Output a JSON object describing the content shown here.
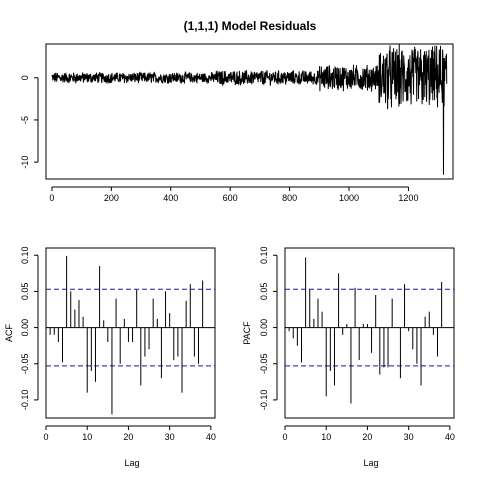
{
  "chart_data": [
    {
      "type": "line",
      "title": "(1,1,1) Model Residuals",
      "xlabel": "",
      "ylabel": "",
      "xlim": [
        -20,
        1350
      ],
      "ylim": [
        -12,
        4
      ],
      "xticks": [
        0,
        200,
        400,
        600,
        800,
        1000,
        1200
      ],
      "yticks": [
        0,
        -5,
        -10
      ],
      "ytick_labels": [
        "0",
        "-5",
        "-10"
      ],
      "n_points": 1330,
      "envelope_segments": [
        {
          "x": [
            0,
            550
          ],
          "amp": 0.6
        },
        {
          "x": [
            550,
            900
          ],
          "amp": 0.8
        },
        {
          "x": [
            900,
            1100
          ],
          "amp": 1.4
        },
        {
          "x": [
            1100,
            1330
          ],
          "amp": 3.5
        }
      ],
      "outlier": {
        "x": 1318,
        "y": -11.5
      },
      "grid": false
    },
    {
      "type": "bar",
      "xlabel": "Lag",
      "ylabel": "ACF",
      "xlim": [
        0,
        41
      ],
      "ylim": [
        -0.125,
        0.11
      ],
      "xticks": [
        0,
        10,
        20,
        30,
        40
      ],
      "yticks": [
        0.1,
        0.05,
        0.0,
        -0.05,
        -0.1
      ],
      "ytick_labels": [
        "0.10",
        "0.05",
        "0.00",
        "-0.05",
        "-0.10"
      ],
      "ci": 0.053,
      "lags": [
        1,
        2,
        3,
        4,
        5,
        6,
        7,
        8,
        9,
        10,
        11,
        12,
        13,
        14,
        15,
        16,
        17,
        18,
        19,
        20,
        21,
        22,
        23,
        24,
        25,
        26,
        27,
        28,
        29,
        30,
        31,
        32,
        33,
        34,
        35,
        36,
        37,
        38,
        39,
        40
      ],
      "values": [
        -0.01,
        -0.01,
        -0.02,
        -0.048,
        0.099,
        0.05,
        0.025,
        0.038,
        0.015,
        -0.09,
        -0.06,
        -0.075,
        0.085,
        0.01,
        -0.02,
        -0.12,
        0.04,
        -0.05,
        0.012,
        -0.02,
        -0.02,
        0.052,
        -0.08,
        -0.04,
        -0.03,
        0.04,
        0.012,
        -0.07,
        0.05,
        0.02,
        -0.045,
        -0.04,
        -0.09,
        0.037,
        0.06,
        -0.04,
        -0.05,
        0.065,
        0,
        0
      ]
    },
    {
      "type": "bar",
      "xlabel": "Lag",
      "ylabel": "PACF",
      "xlim": [
        0,
        41
      ],
      "ylim": [
        -0.125,
        0.11
      ],
      "xticks": [
        0,
        10,
        20,
        30,
        40
      ],
      "yticks": [
        0.1,
        0.05,
        0.0,
        -0.05,
        -0.1
      ],
      "ytick_labels": [
        "0.10",
        "0.05",
        "0.00",
        "-0.05",
        "-0.10"
      ],
      "ci": 0.053,
      "lags": [
        1,
        2,
        3,
        4,
        5,
        6,
        7,
        8,
        9,
        10,
        11,
        12,
        13,
        14,
        15,
        16,
        17,
        18,
        19,
        20,
        21,
        22,
        23,
        24,
        25,
        26,
        27,
        28,
        29,
        30,
        31,
        32,
        33,
        34,
        35,
        36,
        37,
        38,
        39,
        40
      ],
      "values": [
        -0.005,
        -0.015,
        -0.025,
        -0.048,
        0.097,
        0.053,
        0.012,
        0.04,
        0.022,
        -0.095,
        -0.06,
        -0.08,
        0.075,
        -0.01,
        0.005,
        -0.105,
        0.055,
        -0.045,
        0.005,
        0.005,
        -0.035,
        0.045,
        -0.065,
        -0.055,
        -0.055,
        0.04,
        0,
        -0.07,
        0.06,
        -0.005,
        -0.03,
        -0.05,
        -0.08,
        0.015,
        0.022,
        -0.01,
        -0.04,
        0.063,
        0,
        0
      ]
    }
  ]
}
